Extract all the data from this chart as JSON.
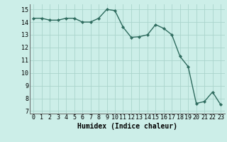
{
  "x": [
    0,
    1,
    2,
    3,
    4,
    5,
    6,
    7,
    8,
    9,
    10,
    11,
    12,
    13,
    14,
    15,
    16,
    17,
    18,
    19,
    20,
    21,
    22,
    23
  ],
  "y": [
    14.3,
    14.3,
    14.15,
    14.15,
    14.3,
    14.3,
    14.0,
    14.0,
    14.3,
    15.0,
    14.9,
    13.6,
    12.8,
    12.85,
    13.0,
    13.8,
    13.5,
    13.0,
    11.3,
    10.5,
    7.6,
    7.75,
    8.5,
    7.5
  ],
  "line_color": "#2e6b5e",
  "marker": "D",
  "markersize": 2.2,
  "linewidth": 1.0,
  "bg_color": "#cceee8",
  "grid_color": "#aad4cc",
  "xlabel": "Humidex (Indice chaleur)",
  "xlabel_fontsize": 7,
  "tick_fontsize": 6,
  "yticks": [
    7,
    8,
    9,
    10,
    11,
    12,
    13,
    14,
    15
  ],
  "xticks": [
    0,
    1,
    2,
    3,
    4,
    5,
    6,
    7,
    8,
    9,
    10,
    11,
    12,
    13,
    14,
    15,
    16,
    17,
    18,
    19,
    20,
    21,
    22,
    23
  ],
  "ylim": [
    6.8,
    15.4
  ],
  "xlim": [
    -0.5,
    23.5
  ]
}
